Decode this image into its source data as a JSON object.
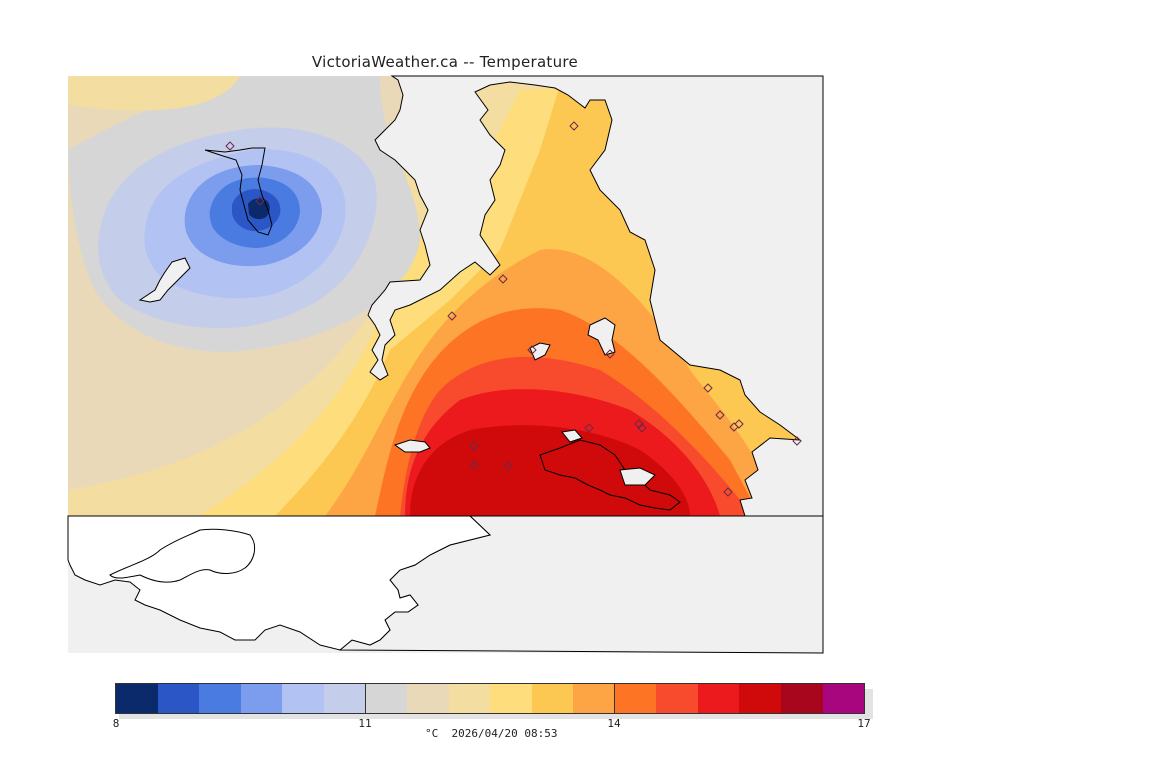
{
  "title": "VictoriaWeather.ca -- Temperature",
  "colorbar": {
    "colors": [
      "#0b2a6b",
      "#2a56c6",
      "#4a7be0",
      "#7c9ded",
      "#b2c2f3",
      "#c4cdea",
      "#d6d6d6",
      "#ead9b8",
      "#f3dda0",
      "#fddd7c",
      "#fdc852",
      "#fda544",
      "#fc7424",
      "#f84a2c",
      "#ec1a1c",
      "#d00a0a",
      "#a8061c",
      "#a8067e"
    ],
    "min": 8,
    "max": 17,
    "ticks": [
      "8",
      "11",
      "14",
      "17"
    ],
    "unit_caption": "°C  2026/04/20 08:53"
  },
  "stations": 19
}
